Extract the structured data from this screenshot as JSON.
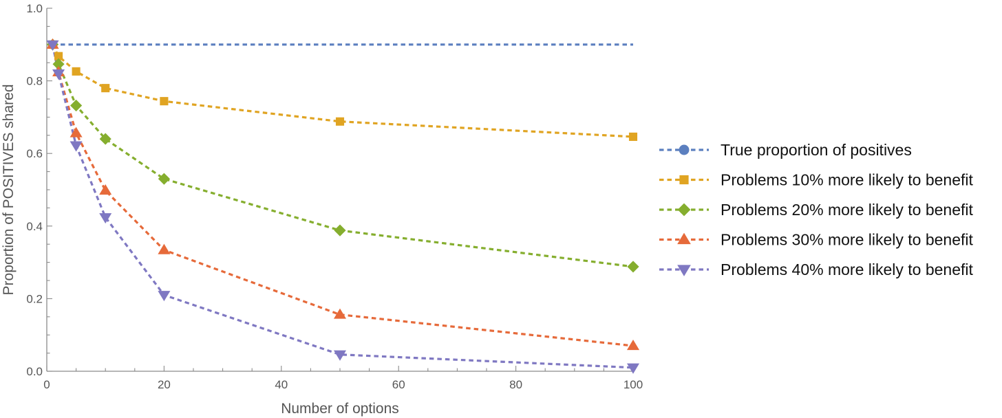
{
  "chart_data": {
    "type": "line",
    "xlabel": "Number of options",
    "ylabel": "Proportion of POSITIVES shared",
    "xlim": [
      0,
      100
    ],
    "ylim": [
      0,
      1.0
    ],
    "x_ticks": [
      0,
      20,
      40,
      60,
      80,
      100
    ],
    "y_ticks": [
      0.0,
      0.2,
      0.4,
      0.6,
      0.8,
      1.0
    ],
    "x_tick_labels": [
      "0",
      "20",
      "40",
      "60",
      "80",
      "100"
    ],
    "y_tick_labels": [
      "0.0",
      "0.2",
      "0.4",
      "0.6",
      "0.8",
      "1.0"
    ],
    "grid": false,
    "legend_position": "right",
    "series": [
      {
        "name": "True proportion of positives",
        "color": "#5b7fbf",
        "marker": "circle",
        "x": [
          1,
          100
        ],
        "y": [
          0.9,
          0.9
        ],
        "show_markers": false
      },
      {
        "name": "Problems 10% more likely to benefit",
        "color": "#e0a422",
        "marker": "square",
        "x": [
          1,
          2,
          5,
          10,
          20,
          50,
          100
        ],
        "y": [
          0.9,
          0.868,
          0.826,
          0.78,
          0.744,
          0.688,
          0.646
        ]
      },
      {
        "name": "Problems 20% more likely to benefit",
        "color": "#85ae2e",
        "marker": "diamond",
        "x": [
          1,
          2,
          5,
          10,
          20,
          50,
          100
        ],
        "y": [
          0.9,
          0.846,
          0.732,
          0.64,
          0.53,
          0.388,
          0.288
        ]
      },
      {
        "name": "Problems 30% more likely to benefit",
        "color": "#e66a3a",
        "marker": "triangle-up",
        "x": [
          1,
          2,
          5,
          10,
          20,
          50,
          100
        ],
        "y": [
          0.9,
          0.824,
          0.656,
          0.498,
          0.334,
          0.156,
          0.07
        ]
      },
      {
        "name": "Problems 40% more likely to benefit",
        "color": "#7f78c2",
        "marker": "triangle-down",
        "x": [
          1,
          2,
          5,
          10,
          20,
          50,
          100
        ],
        "y": [
          0.9,
          0.82,
          0.622,
          0.424,
          0.21,
          0.046,
          0.01
        ]
      }
    ]
  }
}
